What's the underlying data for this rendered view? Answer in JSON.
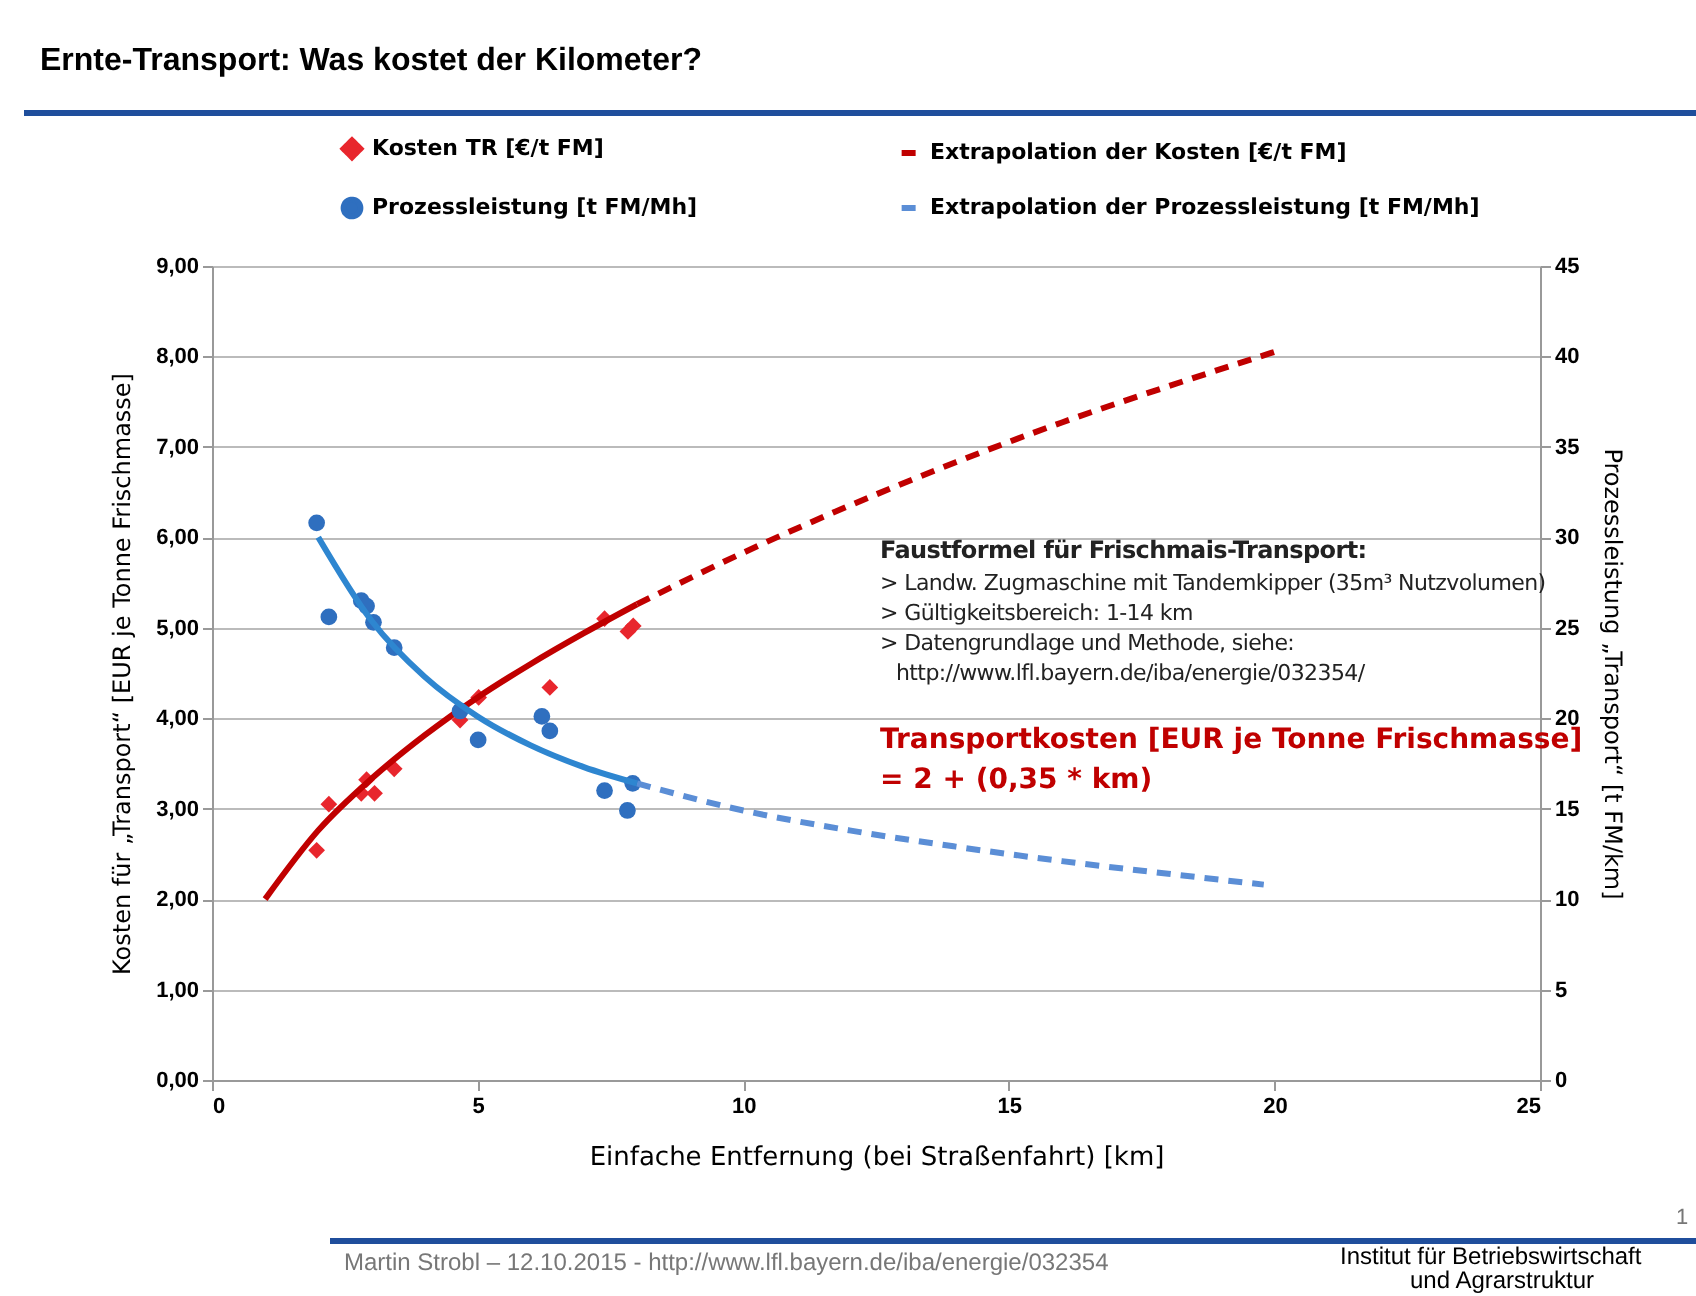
{
  "chart_data": {
    "type": "scatter",
    "title": "Ernte-Transport: Was kostet der Kilometer?",
    "xlabel": "Einfache Entfernung (bei Straßenfahrt) [km]",
    "ylabel": "Kosten für „Transport“ [EUR je Tonne Frischmasse]",
    "y2label": "Prozessleistung „Transport“ [t FM/km]",
    "xlim": [
      0,
      25
    ],
    "xticks": [
      0,
      5,
      10,
      15,
      20,
      25
    ],
    "ylim": [
      0,
      9
    ],
    "yticks": [
      {
        "value": 0,
        "label": "0,00"
      },
      {
        "value": 1,
        "label": "1,00"
      },
      {
        "value": 2,
        "label": "2,00"
      },
      {
        "value": 3,
        "label": "3,00"
      },
      {
        "value": 4,
        "label": "4,00"
      },
      {
        "value": 5,
        "label": "5,00"
      },
      {
        "value": 6,
        "label": "6,00"
      },
      {
        "value": 7,
        "label": "7,00"
      },
      {
        "value": 8,
        "label": "8,00"
      },
      {
        "value": 9,
        "label": "9,00"
      }
    ],
    "y2lim": [
      0,
      45
    ],
    "y2ticks": [
      0,
      5,
      10,
      15,
      20,
      25,
      30,
      35,
      40,
      45
    ],
    "grid": "y",
    "legend": "top",
    "series": [
      {
        "name": "Kosten TR [€/t FM]",
        "marker": "diamond",
        "color": "#e8262d",
        "x": [
          1.97,
          2.2,
          2.81,
          2.91,
          3.06,
          3.43,
          4.67,
          5.02,
          6.36,
          7.39,
          7.83,
          7.93
        ],
        "values": [
          2.54,
          3.05,
          3.17,
          3.32,
          3.17,
          3.44,
          3.98,
          4.23,
          4.34,
          5.1,
          4.96,
          5.02
        ]
      },
      {
        "name": "Prozessleistung [t FM/Mh]",
        "marker": "circle",
        "axis": "y2",
        "color": "#2f6fbf",
        "x": [
          1.97,
          2.2,
          2.81,
          2.91,
          3.04,
          3.43,
          4.67,
          5.01,
          6.21,
          6.36,
          7.39,
          7.92,
          7.82
        ],
        "values": [
          30.8,
          25.6,
          26.5,
          26.2,
          25.3,
          23.9,
          20.4,
          18.8,
          20.1,
          19.3,
          16.0,
          16.4,
          14.9
        ]
      },
      {
        "name": "Extrapolation der Kosten  [€/t FM]",
        "type": "line",
        "line_style": "dashed",
        "color": "#c00000",
        "x": [
          8,
          10,
          12,
          14,
          16,
          18,
          20
        ],
        "values": [
          5.26,
          5.83,
          6.35,
          6.83,
          7.27,
          7.67,
          8.05
        ]
      },
      {
        "name": "Extrapolation der Prozessleistung [t FM/Mh]",
        "type": "line",
        "line_style": "dashed",
        "axis": "y2",
        "color": "#5b8ed6",
        "x": [
          8,
          10,
          12,
          14,
          16,
          18,
          19.8
        ],
        "values": [
          16.4,
          14.9,
          13.8,
          12.9,
          12.1,
          11.4,
          10.8
        ]
      },
      {
        "type": "line",
        "line_style": "solid",
        "color": "#c00000",
        "x": [
          1,
          2,
          3,
          4,
          5,
          6,
          7,
          8
        ],
        "values": [
          2.0,
          2.76,
          3.33,
          3.81,
          4.23,
          4.6,
          4.94,
          5.26
        ]
      },
      {
        "type": "line",
        "line_style": "solid",
        "axis": "y2",
        "color": "#2e86d0",
        "x": [
          2,
          3,
          4,
          5,
          6,
          7,
          8
        ],
        "values": [
          30.0,
          25.4,
          22.3,
          20.1,
          18.5,
          17.3,
          16.4
        ]
      }
    ],
    "annotations": [
      "Faustformel für Frischmais-Transport:",
      "> Landw. Zugmaschine mit Tandemkipper (35m³ Nutzvolumen)",
      "> Gültigkeitsbereich: 1-14 km",
      "> Datengrundlage und Methode, siehe:",
      "http://www.lfl.bayern.de/iba/energie/032354/",
      "Transportkosten [EUR je Tonne Frischmasse]",
      "= 2 + (0,35 * km)",
      "Martin Strobl – 12.10.2015 - http://www.lfl.bayern.de/iba/energie/032354",
      "1",
      "Institut für Betriebswirtschaft",
      "und Agrarstruktur"
    ]
  }
}
